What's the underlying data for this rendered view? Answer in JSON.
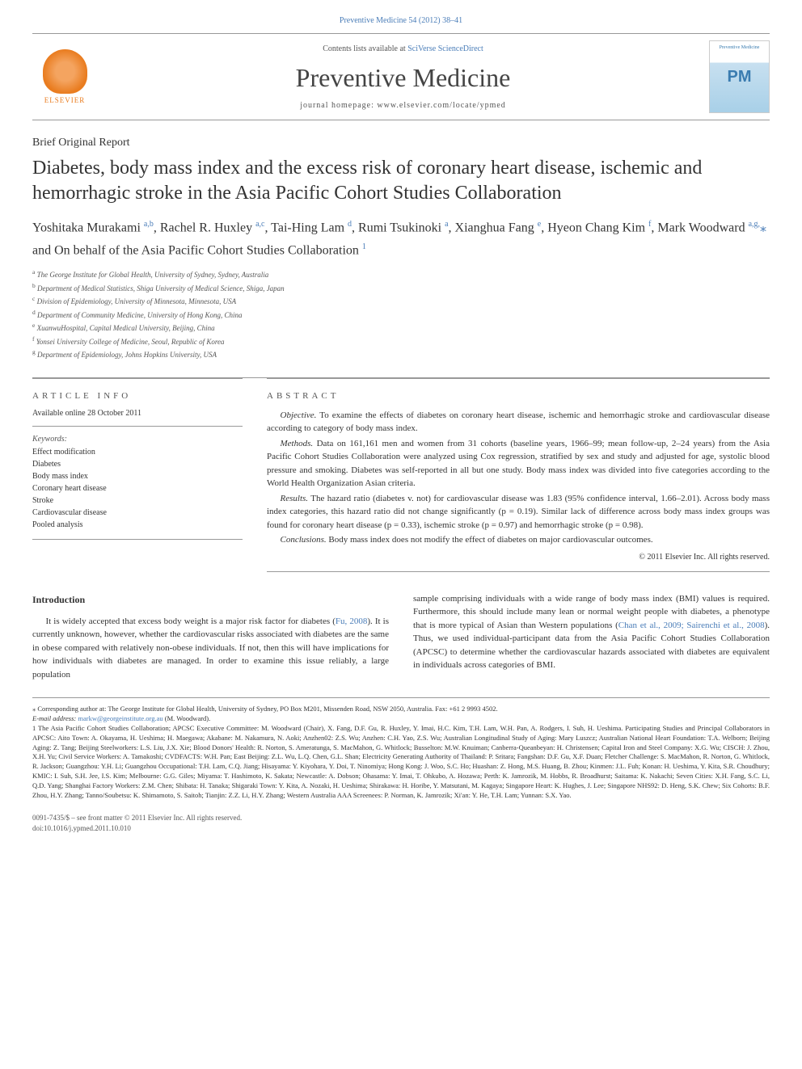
{
  "header": {
    "journal_citation": "Preventive Medicine 54 (2012) 38–41",
    "contents_text": "Contents lists available at ",
    "contents_link": "SciVerse ScienceDirect",
    "journal_title": "Preventive Medicine",
    "homepage_text": "journal homepage: www.elsevier.com/locate/ypmed",
    "elsevier_label": "ELSEVIER",
    "pm_abbrev": "PM",
    "pm_full": "Preventive Medicine"
  },
  "article": {
    "type": "Brief Original Report",
    "title": "Diabetes, body mass index and the excess risk of coronary heart disease, ischemic and hemorrhagic stroke in the Asia Pacific Cohort Studies Collaboration",
    "authors_html": "Yoshitaka Murakami <sup>a,b</sup>, Rachel R. Huxley <sup>a,c</sup>, Tai-Hing Lam <sup>d</sup>, Rumi Tsukinoki <sup>a</sup>, Xianghua Fang <sup>e</sup>, Hyeon Chang Kim <sup>f</sup>, Mark Woodward <sup>a,g,</sup><span class='star'>⁎</span>",
    "behalf": "and On behalf of the Asia Pacific Cohort Studies Collaboration ",
    "behalf_sup": "1",
    "affiliations": [
      "a The George Institute for Global Health, University of Sydney, Sydney, Australia",
      "b Department of Medical Statistics, Shiga University of Medical Science, Shiga, Japan",
      "c Division of Epidemiology, University of Minnesota, Minnesota, USA",
      "d Department of Community Medicine, University of Hong Kong, China",
      "e XuanwuHospital, Capital Medical University, Beijing, China",
      "f Yonsei University College of Medicine, Seoul, Republic of Korea",
      "g Department of Epidemiology, Johns Hopkins University, USA"
    ]
  },
  "info": {
    "article_info_heading": "ARTICLE INFO",
    "online_date": "Available online 28 October 2011",
    "keywords_label": "Keywords:",
    "keywords": [
      "Effect modification",
      "Diabetes",
      "Body mass index",
      "Coronary heart disease",
      "Stroke",
      "Cardiovascular disease",
      "Pooled analysis"
    ]
  },
  "abstract": {
    "heading": "ABSTRACT",
    "objective_label": "Objective.",
    "objective_text": " To examine the effects of diabetes on coronary heart disease, ischemic and hemorrhagic stroke and cardiovascular disease according to category of body mass index.",
    "methods_label": "Methods.",
    "methods_text": " Data on 161,161 men and women from 31 cohorts (baseline years, 1966–99; mean follow-up, 2–24 years) from the Asia Pacific Cohort Studies Collaboration were analyzed using Cox regression, stratified by sex and study and adjusted for age, systolic blood pressure and smoking. Diabetes was self-reported in all but one study. Body mass index was divided into five categories according to the World Health Organization Asian criteria.",
    "results_label": "Results.",
    "results_text": " The hazard ratio (diabetes v. not) for cardiovascular disease was 1.83 (95% confidence interval, 1.66–2.01). Across body mass index categories, this hazard ratio did not change significantly (p = 0.19). Similar lack of difference across body mass index groups was found for coronary heart disease (p = 0.33), ischemic stroke (p = 0.97) and hemorrhagic stroke (p = 0.98).",
    "conclusions_label": "Conclusions.",
    "conclusions_text": " Body mass index does not modify the effect of diabetes on major cardiovascular outcomes.",
    "copyright": "© 2011 Elsevier Inc. All rights reserved."
  },
  "body": {
    "intro_heading": "Introduction",
    "intro_col1": "It is widely accepted that excess body weight is a major risk factor for diabetes (Fu, 2008). It is currently unknown, however, whether the cardiovascular risks associated with diabetes are the same in obese compared with relatively non-obese individuals. If not, then this will have implications for how individuals with diabetes are managed. In order to examine this issue reliably, a large population",
    "intro_col2": "sample comprising individuals with a wide range of body mass index (BMI) values is required. Furthermore, this should include many lean or normal weight people with diabetes, a phenotype that is more typical of Asian than Western populations (Chan et al., 2009; Sairenchi et al., 2008). Thus, we used individual-participant data from the Asia Pacific Cohort Studies Collaboration (APCSC) to determine whether the cardiovascular hazards associated with diabetes are equivalent in individuals across categories of BMI."
  },
  "footnotes": {
    "corresponding": "⁎ Corresponding author at: The George Institute for Global Health, University of Sydney, PO Box M201, Missenden Road, NSW 2050, Australia. Fax: +61 2 9993 4502.",
    "email_label": "E-mail address: ",
    "email": "markw@georgeinstitute.org.au",
    "email_suffix": " (M. Woodward).",
    "collab": "1 The Asia Pacific Cohort Studies Collaboration; APCSC Executive Committee: M. Woodward (Chair), X. Fang, D.F. Gu, R. Huxley, Y. Imai, H.C. Kim, T.H. Lam, W.H. Pan, A. Rodgers, I. Suh, H. Ueshima. Participating Studies and Principal Collaborators in APCSC: Aito Town: A. Okayama, H. Ueshima; H. Maegawa; Akabane: M. Nakamura, N. Aoki; Anzhen02: Z.S. Wu; Anzhen: C.H. Yao, Z.S. Wu; Australian Longitudinal Study of Aging: Mary Luszcz; Australian National Heart Foundation: T.A. Welborn; Beijing Aging: Z. Tang; Beijing Steelworkers: L.S. Liu, J.X. Xie; Blood Donors' Health: R. Norton, S. Ameratunga, S. MacMahon, G. Whitlock; Busselton: M.W. Knuiman; Canberra-Queanbeyan: H. Christensen; Capital Iron and Steel Company: X.G. Wu; CISCH: J. Zhou, X.H. Yu; Civil Service Workers: A. Tamakoshi; CVDFACTS: W.H. Pan; East Beijing: Z.L. Wu, L.Q. Chen, G.L. Shan; Electricity Generating Authority of Thailand: P. Sritara; Fangshan: D.F. Gu, X.F. Duan; Fletcher Challenge: S. MacMahon, R. Norton, G. Whitlock, R. Jackson; Guangzhou: Y.H. Li; Guangzhou Occupational: T.H. Lam, C.Q. Jiang; Hisayama: Y. Kiyohara, Y. Doi, T. Ninomiya; Hong Kong: J. Woo, S.C. Ho; Huashan: Z. Hong, M.S. Huang, B. Zhou; Kinmen: J.L. Fuh; Konan: H. Ueshima, Y. Kita, S.R. Choudhury; KMIC: I. Suh, S.H. Jee, I.S. Kim; Melbourne: G.G. Giles; Miyama: T. Hashimoto, K. Sakata; Newcastle: A. Dobson; Ohasama: Y. Imai, T. Ohkubo, A. Hozawa; Perth: K. Jamrozik, M. Hobbs, R. Broadhurst; Saitama: K. Nakachi; Seven Cities: X.H. Fang, S.C. Li, Q.D. Yang; Shanghai Factory Workers: Z.M. Chen; Shibata: H. Tanaka; Shigaraki Town: Y. Kita, A. Nozaki, H. Ueshima; Shirakawa: H. Horibe, Y. Matsutani, M. Kagaya; Singapore Heart: K. Hughes, J. Lee; Singapore NHS92: D. Heng, S.K. Chew; Six Cohorts: B.F. Zhou, H.Y. Zhang; Tanno/Soubetsu: K. Shimamoto, S. Saitoh; Tianjin: Z.Z. Li, H.Y. Zhang; Western Australia AAA Screenees: P. Norman, K. Jamrozik; Xi'an: Y. He, T.H. Lam; Yunnan: S.X. Yao."
  },
  "footer": {
    "issn": "0091-7435/$ – see front matter © 2011 Elsevier Inc. All rights reserved.",
    "doi": "doi:10.1016/j.ypmed.2011.10.010"
  },
  "colors": {
    "link": "#4a7db8",
    "elsevier": "#e97c1f",
    "text": "#333333",
    "border": "#999999"
  }
}
